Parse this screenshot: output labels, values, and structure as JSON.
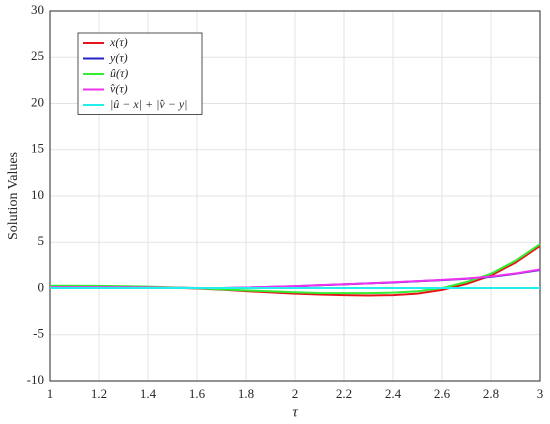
{
  "chart_data": {
    "type": "line",
    "xlabel": "τ",
    "ylabel": "Solution Values",
    "x": [
      1.0,
      1.1,
      1.2,
      1.3,
      1.4,
      1.5,
      1.6,
      1.7,
      1.8,
      1.9,
      2.0,
      2.1,
      2.2,
      2.3,
      2.4,
      2.5,
      2.6,
      2.7,
      2.8,
      2.9,
      3.0
    ],
    "series": [
      {
        "name": "x(τ)",
        "color": "#e8141c",
        "values": [
          0.2,
          0.2,
          0.2,
          0.18,
          0.15,
          0.1,
          0,
          -0.12,
          -0.28,
          -0.42,
          -0.55,
          -0.65,
          -0.72,
          -0.75,
          -0.72,
          -0.55,
          -0.15,
          0.5,
          1.4,
          2.8,
          4.6
        ]
      },
      {
        "name": "y(τ)",
        "color": "#2424c8",
        "values": [
          0.2,
          0.2,
          0.2,
          0.18,
          0.15,
          0.1,
          0.05,
          0.05,
          0.1,
          0.18,
          0.25,
          0.35,
          0.45,
          0.55,
          0.65,
          0.78,
          0.9,
          1.05,
          1.25,
          1.6,
          2.0
        ]
      },
      {
        "name": "û(τ)",
        "color": "#33ee33",
        "values": [
          0.3,
          0.3,
          0.28,
          0.25,
          0.2,
          0.12,
          0.02,
          -0.1,
          -0.2,
          -0.3,
          -0.4,
          -0.48,
          -0.5,
          -0.5,
          -0.45,
          -0.3,
          0.05,
          0.7,
          1.6,
          3.0,
          4.8
        ]
      },
      {
        "name": "v̂(τ)",
        "color": "#ee33ee",
        "values": [
          0.15,
          0.15,
          0.15,
          0.14,
          0.12,
          0.08,
          0.04,
          0.05,
          0.1,
          0.18,
          0.26,
          0.36,
          0.46,
          0.56,
          0.67,
          0.8,
          0.93,
          1.08,
          1.3,
          1.62,
          2.05
        ]
      },
      {
        "name": "|û − x| + |v̂ − y|",
        "color": "#22eeee",
        "values": [
          0.05,
          0.05,
          0.05,
          0.05,
          0.05,
          0.05,
          0.05,
          0.05,
          0.05,
          0.05,
          0.05,
          0.05,
          0.05,
          0.05,
          0.05,
          0.05,
          0.05,
          0.05,
          0.05,
          0.05,
          0.05
        ]
      }
    ],
    "xlim": [
      1,
      3
    ],
    "xticks": [
      1,
      1.2,
      1.4,
      1.6,
      1.8,
      2,
      2.2,
      2.4,
      2.6,
      2.8,
      3
    ],
    "ylim": [
      -10,
      30
    ],
    "yticks": [
      -10,
      -5,
      0,
      5,
      10,
      15,
      20,
      25,
      30
    ],
    "grid": true,
    "legend": "upper-left"
  }
}
